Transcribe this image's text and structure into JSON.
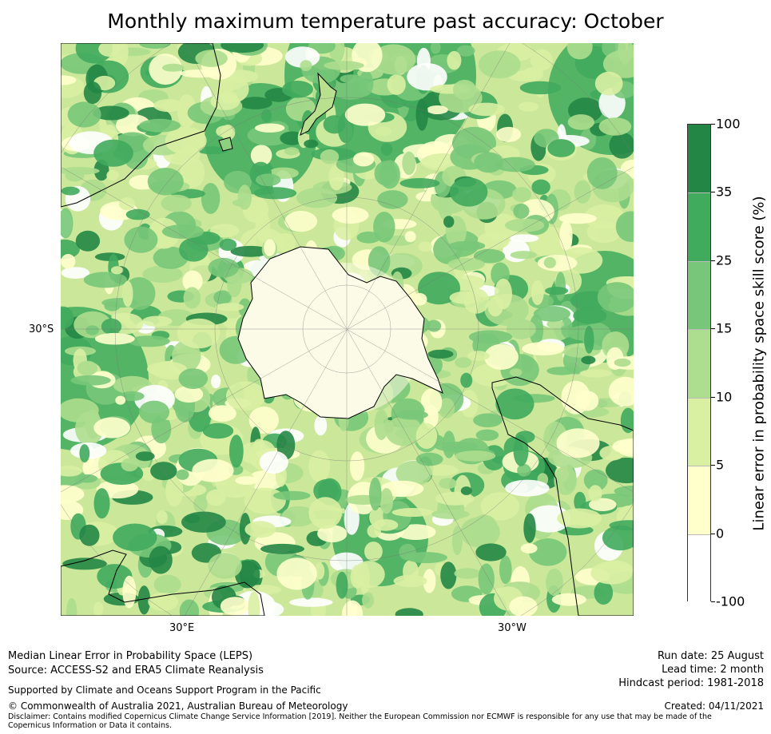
{
  "title": "Monthly maximum temperature past accuracy: October",
  "map": {
    "lat_label": "30°S",
    "lon_labels": {
      "east": "30°E",
      "west": "30°W"
    },
    "projection": "south-polar-stereographic"
  },
  "colorbar": {
    "title": "Linear error in probability space skill score (%)",
    "ticks": [
      "100",
      "35",
      "25",
      "15",
      "10",
      "5",
      "0",
      "-100"
    ],
    "bins": [
      {
        "range": "35 to 100",
        "color": "#238645"
      },
      {
        "range": "25 to 35",
        "color": "#40aa5d"
      },
      {
        "range": "15 to 25",
        "color": "#78c679"
      },
      {
        "range": "10 to 15",
        "color": "#addd8e"
      },
      {
        "range": "5 to 10",
        "color": "#d9f0a3"
      },
      {
        "range": "0 to 5",
        "color": "#ffffcc"
      },
      {
        "range": "-100 to 0",
        "color": "#ffffff"
      }
    ]
  },
  "footer": {
    "metric": "Median Linear Error in Probability Space (LEPS)",
    "source": "Source: ACCESS-S2 and ERA5 Climate Reanalysis",
    "support": "Supported by Climate and Oceans Support Program in the Pacific",
    "copyright": "© Commonwealth of Australia 2021, Australian Bureau of Meteorology",
    "disclaimer": "Disclaimer: Contains modified Copernicus Climate Change Service Information [2019]. Neither the European Commission nor ECMWF is responsible for any use that may be made of the Copernicus Information or Data it contains.",
    "run_date": "Run date: 25 August",
    "lead_time": "Lead time: 2 month",
    "hindcast": "Hindcast period: 1981-2018",
    "created": "Created: 04/11/2021"
  }
}
